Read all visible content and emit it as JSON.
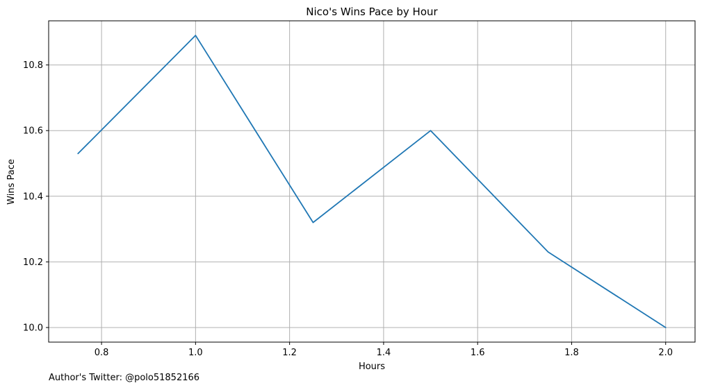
{
  "chart_data": {
    "type": "line",
    "title": "Nico's Wins Pace by Hour",
    "xlabel": "Hours",
    "ylabel": "Wins Pace",
    "x": [
      0.75,
      1.0,
      1.25,
      1.5,
      1.75,
      2.0
    ],
    "series": [
      {
        "values": [
          10.53,
          10.89,
          10.32,
          10.6,
          10.23,
          10.0
        ],
        "color": "#1f77b4"
      }
    ],
    "xlim": [
      0.6875,
      2.0625
    ],
    "ylim": [
      9.9555,
      10.9345
    ],
    "xticks": [
      0.8,
      1.0,
      1.2,
      1.4,
      1.6,
      1.8,
      2.0
    ],
    "xtick_labels": [
      "0.8",
      "1.0",
      "1.2",
      "1.4",
      "1.6",
      "1.8",
      "2.0"
    ],
    "yticks": [
      10.0,
      10.2,
      10.4,
      10.6,
      10.8
    ],
    "ytick_labels": [
      "10.0",
      "10.2",
      "10.4",
      "10.6",
      "10.8"
    ],
    "grid": true,
    "grid_color": "#b0b0b0"
  },
  "footer": {
    "text": "Author's Twitter: @polo51852166"
  }
}
